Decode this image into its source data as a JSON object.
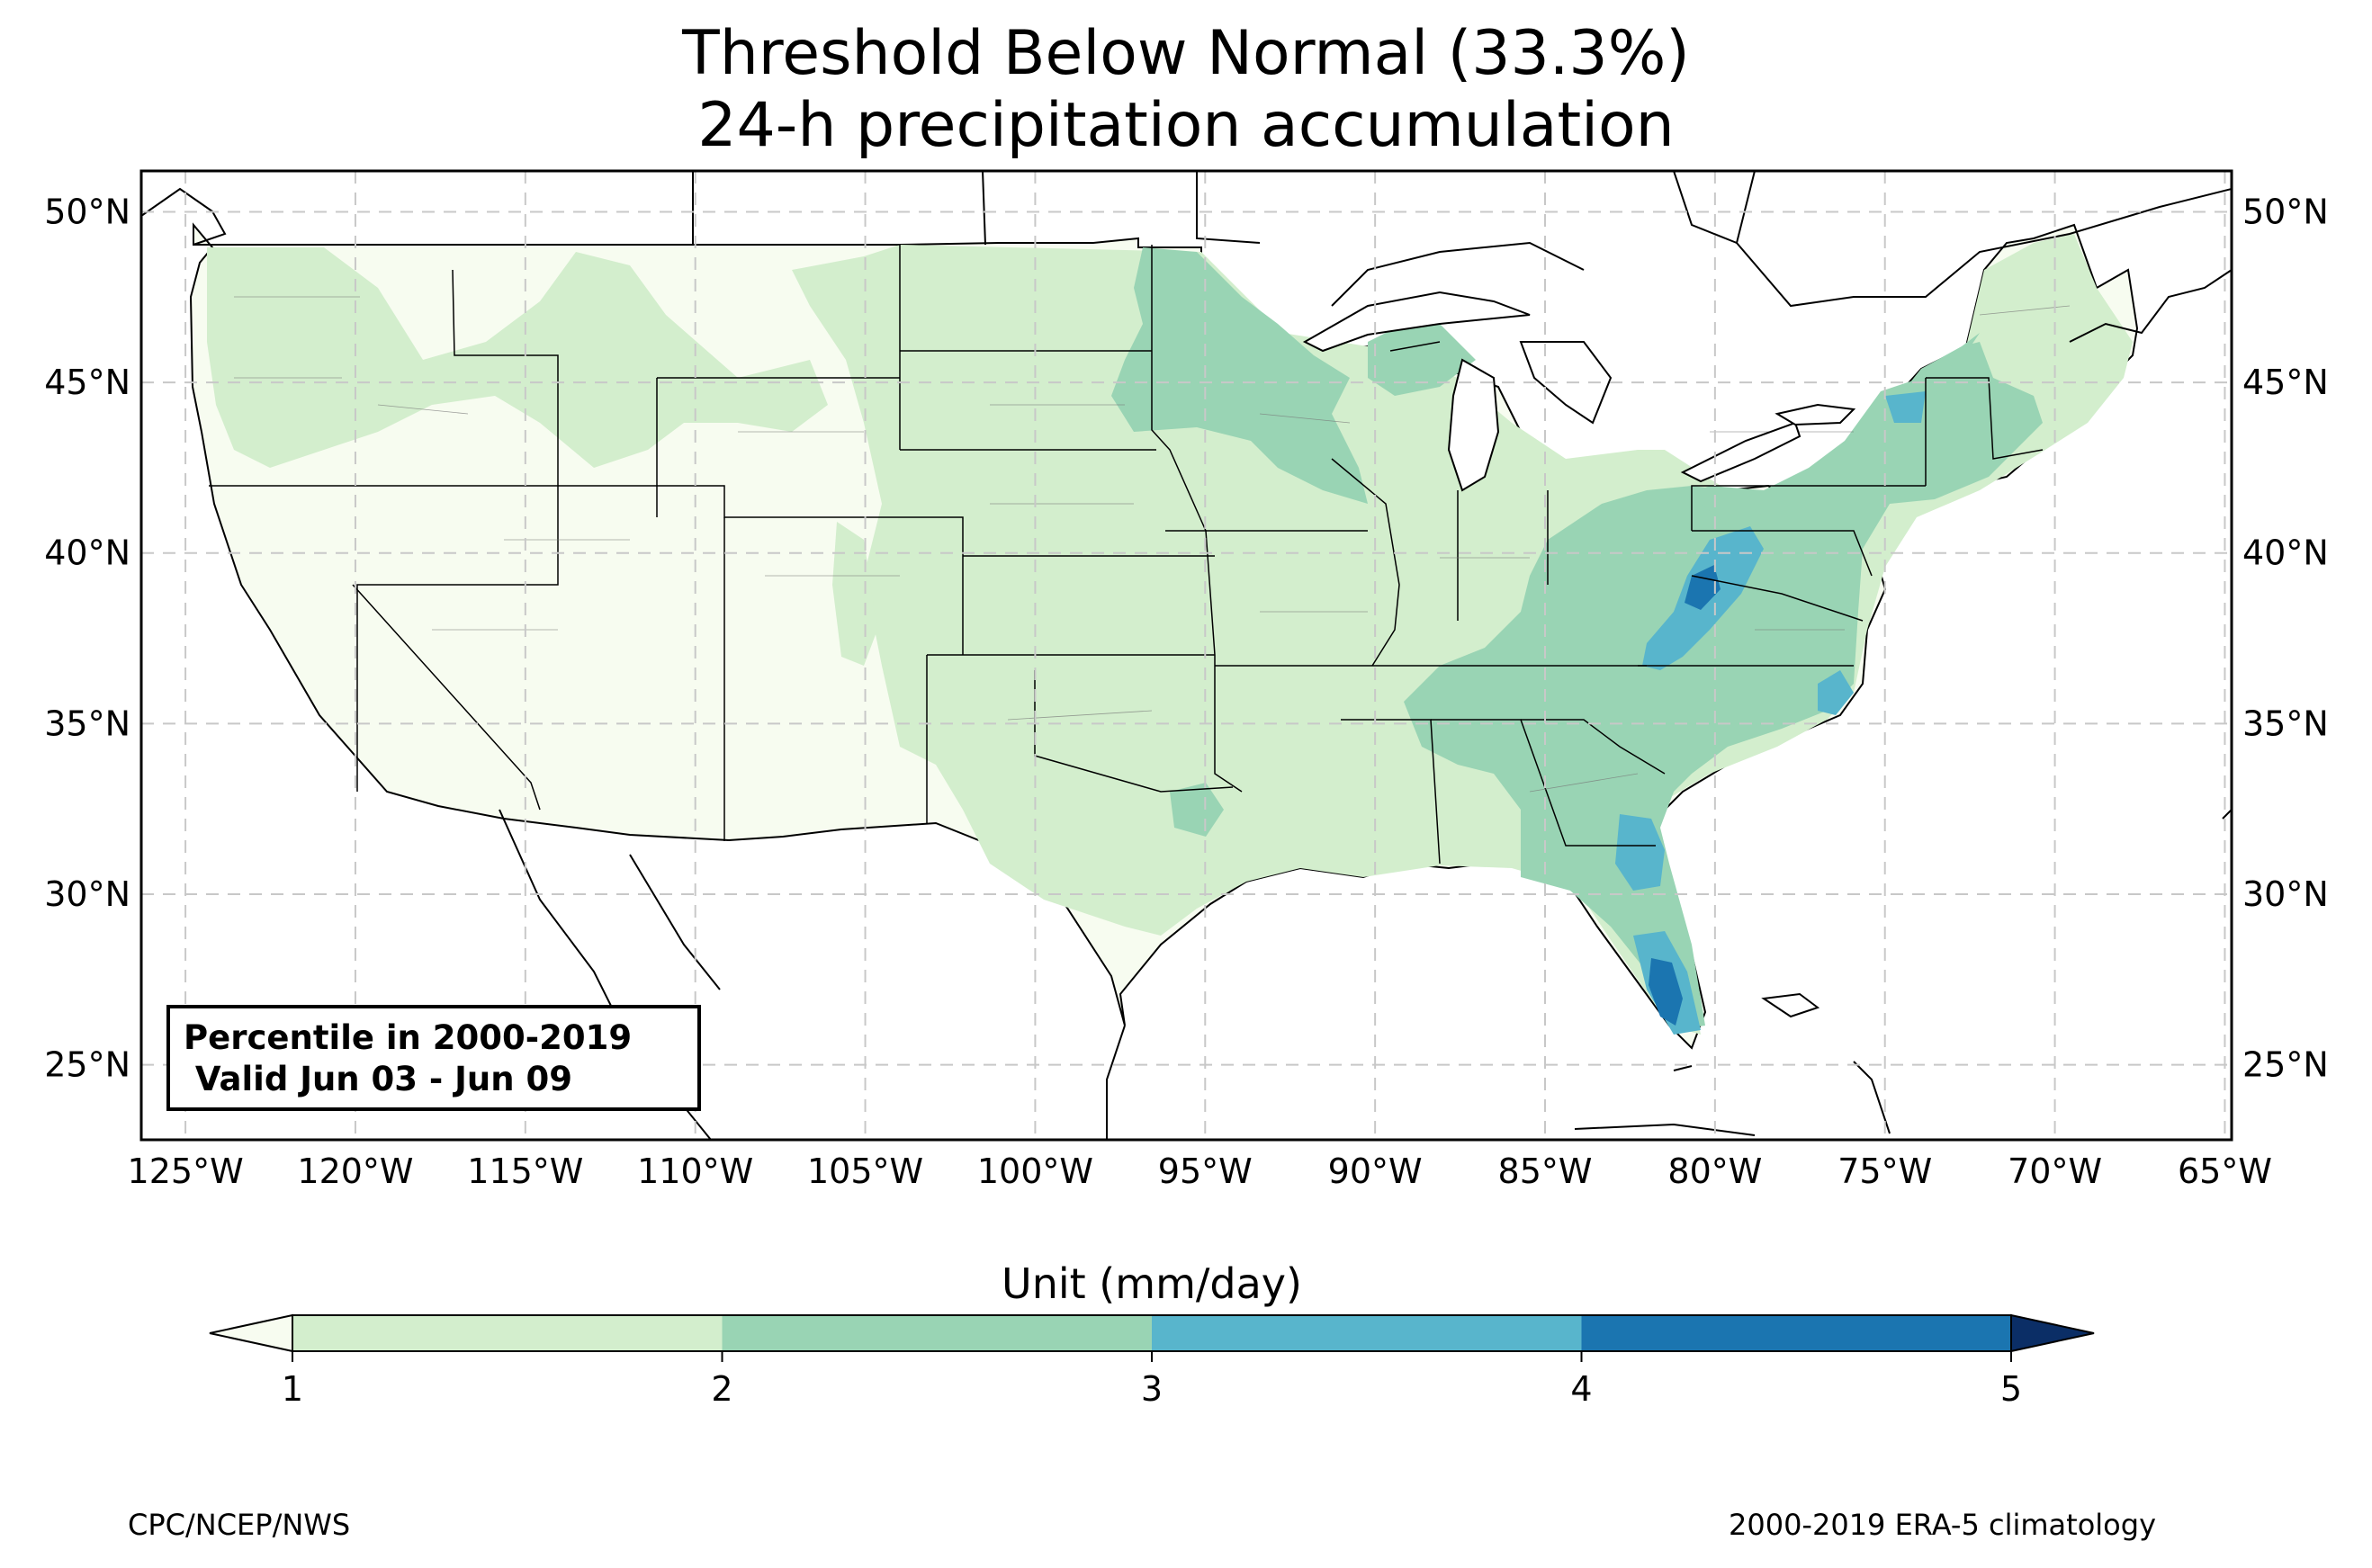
{
  "title": {
    "line1": "Threshold Below Normal (33.3%)",
    "line2": "24-h precipitation accumulation"
  },
  "map": {
    "projection": "PlateCarree",
    "extent_lon": [
      -126.3,
      -64.8
    ],
    "extent_lat": [
      22.8,
      51.2
    ],
    "lat_ticks": [
      {
        "value": 50,
        "label": "50°N"
      },
      {
        "value": 45,
        "label": "45°N"
      },
      {
        "value": 40,
        "label": "40°N"
      },
      {
        "value": 35,
        "label": "35°N"
      },
      {
        "value": 30,
        "label": "30°N"
      },
      {
        "value": 25,
        "label": "25°N"
      }
    ],
    "lon_ticks": [
      {
        "value": -125,
        "label": "125°W"
      },
      {
        "value": -120,
        "label": "120°W"
      },
      {
        "value": -115,
        "label": "115°W"
      },
      {
        "value": -110,
        "label": "110°W"
      },
      {
        "value": -105,
        "label": "105°W"
      },
      {
        "value": -100,
        "label": "100°W"
      },
      {
        "value": -95,
        "label": "95°W"
      },
      {
        "value": -90,
        "label": "90°W"
      },
      {
        "value": -85,
        "label": "85°W"
      },
      {
        "value": -80,
        "label": "80°W"
      },
      {
        "value": -75,
        "label": "75°W"
      },
      {
        "value": -70,
        "label": "70°W"
      },
      {
        "value": -65,
        "label": "65°W"
      }
    ],
    "gridlines": true,
    "fill_regions": [
      {
        "name": "Southeast and Eastern Seaboard",
        "level": "2-3"
      },
      {
        "name": "Appalachians (West Virginia / Virginia)",
        "level": "3-4"
      },
      {
        "name": "Southeast Georgia / Northeast Florida",
        "level": "3-4"
      },
      {
        "name": "South Florida",
        "level": "4-5"
      },
      {
        "name": "Eastern North Carolina",
        "level": "3-4"
      },
      {
        "name": "Upper Midwest",
        "level": "2-3"
      },
      {
        "name": "Great Plains and Mid-South",
        "level": "1-2"
      },
      {
        "name": "Western US",
        "level": "below 1"
      }
    ]
  },
  "info_box": {
    "line1": "Percentile in 2000-2019",
    "line2": " Valid Jun 03 - Jun 09"
  },
  "colorbar": {
    "title": "Unit (mm/day)",
    "levels": [
      1,
      2,
      3,
      4,
      5
    ],
    "tick_labels": [
      "1",
      "2",
      "3",
      "4",
      "5"
    ],
    "colors": {
      "under": "#f7fcf0",
      "b1_2": "#d3eecd",
      "b2_3": "#99d4b4",
      "b3_4": "#58b5cc",
      "b4_5": "#1b75b0",
      "over": "#0b2e66"
    },
    "extend": "both"
  },
  "footer": {
    "left": "CPC/NCEP/NWS",
    "right": "2000-2019 ERA-5 climatology"
  }
}
